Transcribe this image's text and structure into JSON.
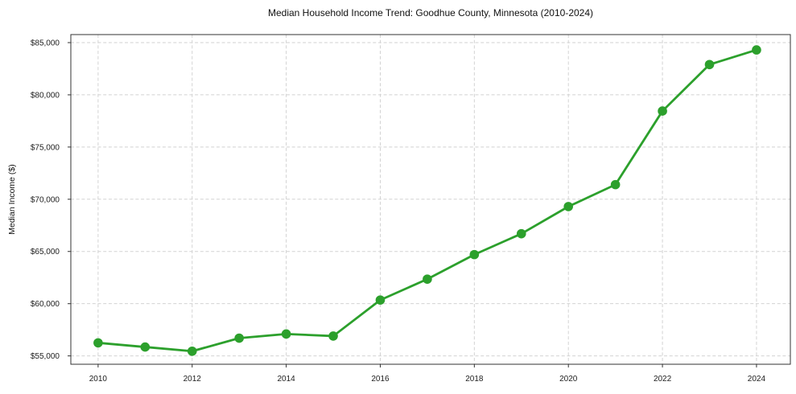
{
  "page": {
    "background": "#ffffff"
  },
  "chart_data": {
    "type": "line",
    "title": "Median Household Income Trend: Goodhue County, Minnesota (2010-2024)",
    "xlabel": "",
    "ylabel": "Median Income ($)",
    "x": [
      2010,
      2011,
      2012,
      2013,
      2014,
      2015,
      2016,
      2017,
      2018,
      2019,
      2020,
      2021,
      2022,
      2023,
      2024
    ],
    "series": [
      {
        "name": "Median Household Income",
        "color": "#2ca02c",
        "marker": "circle",
        "values": [
          56250,
          55850,
          55450,
          56700,
          57100,
          56900,
          60350,
          62350,
          64700,
          66700,
          69300,
          71400,
          78450,
          82900,
          84300
        ]
      }
    ],
    "xticks": {
      "values": [
        2010,
        2012,
        2014,
        2016,
        2018,
        2020,
        2022,
        2024
      ],
      "labels": [
        "2010",
        "2012",
        "2014",
        "2016",
        "2018",
        "2020",
        "2022",
        "2024"
      ]
    },
    "yticks": {
      "values": [
        55000,
        60000,
        65000,
        70000,
        75000,
        80000,
        85000
      ],
      "labels": [
        "$55,000",
        "$60,000",
        "$65,000",
        "$70,000",
        "$75,000",
        "$80,000",
        "$85,000"
      ]
    },
    "xlim": [
      2009.42,
      2024.72
    ],
    "ylim": [
      54200,
      85770
    ],
    "grid": {
      "visible": true,
      "style": "dashed",
      "color": "#d2d2d2"
    },
    "legend": {
      "visible": false
    },
    "axis_color": "#333333",
    "plot_background": "#ffffff"
  }
}
